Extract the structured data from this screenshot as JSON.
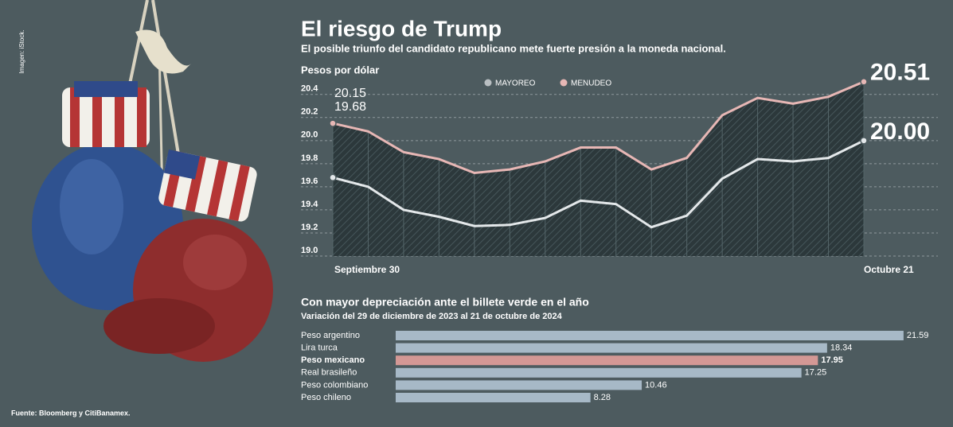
{
  "image_credit": "Imagen: iStock.",
  "source": "Fuente: Bloomberg y CitiBanamex.",
  "chart_data": [
    {
      "type": "line",
      "title": "El riesgo de Trump",
      "subtitle": "El posible triunfo del candidato republicano mete fuerte presión a la moneda nacional.",
      "y_label": "Pesos por dólar",
      "categories": [
        "Septiembre 30",
        null,
        null,
        null,
        null,
        null,
        null,
        null,
        null,
        null,
        null,
        null,
        null,
        null,
        null,
        "Octubre 21"
      ],
      "series": [
        {
          "name": "MAYOREO",
          "color": "#e4e8ea",
          "legend_color": "#b9bfc2",
          "values": [
            19.68,
            19.6,
            19.4,
            19.34,
            19.26,
            19.27,
            19.33,
            19.48,
            19.45,
            19.25,
            19.35,
            19.67,
            19.84,
            19.82,
            19.85,
            20.0
          ],
          "value_labels": [
            "19.68",
            null,
            null,
            null,
            null,
            null,
            null,
            null,
            null,
            null,
            null,
            null,
            null,
            null,
            null,
            "20.00"
          ]
        },
        {
          "name": "MENUDEO",
          "color": "#e7b7b5",
          "legend_color": "#e7b7b5",
          "values": [
            20.15,
            20.08,
            19.9,
            19.84,
            19.72,
            19.75,
            19.82,
            19.94,
            19.94,
            19.75,
            19.85,
            20.22,
            20.37,
            20.32,
            20.38,
            20.51
          ],
          "value_labels": [
            "20.15",
            null,
            null,
            null,
            null,
            null,
            null,
            null,
            null,
            null,
            null,
            null,
            null,
            null,
            null,
            "20.51"
          ]
        }
      ],
      "ylim": [
        19,
        20.55
      ],
      "yticks": [
        {
          "value": 19,
          "label": "19.0"
        },
        19.2,
        19.4,
        19.6,
        19.8,
        {
          "value": 20,
          "label": "20.0"
        },
        20.2,
        20.4
      ],
      "grid": true
    },
    {
      "type": "hbar",
      "title": "Con mayor depreciación ante el billete verde en el año",
      "subtitle": "Variación del 29 de diciembre de 2023 al 21 de octubre de 2024",
      "categories": [
        "Peso argentino",
        "Lira turca",
        "Peso mexicano",
        "Real brasileño",
        "Peso colombiano",
        "Peso chileno"
      ],
      "values": [
        21.59,
        18.34,
        17.95,
        17.25,
        10.46,
        8.28
      ],
      "colors": [
        "#a7b9c7",
        "#a7b9c7",
        "#d49895",
        "#a7b9c7",
        "#a7b9c7",
        "#a7b9c7"
      ],
      "xlim": [
        0,
        22
      ]
    }
  ]
}
